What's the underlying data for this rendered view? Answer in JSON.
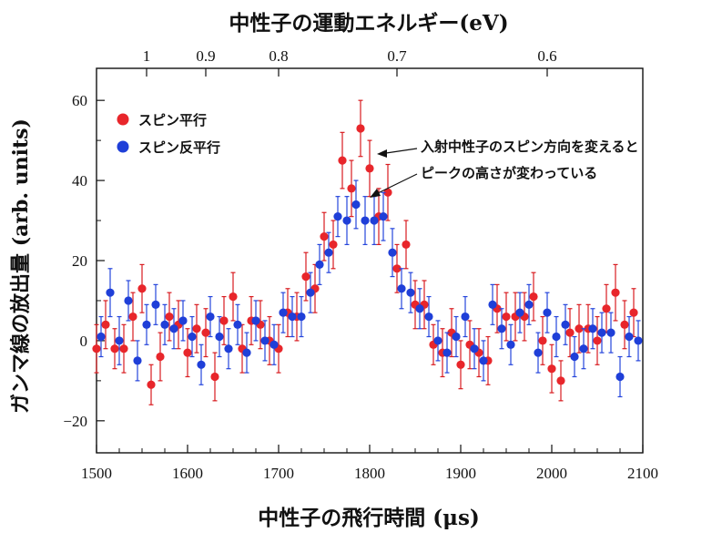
{
  "chart_data": {
    "type": "scatter",
    "title_top": "中性子の運動エネルギー(eV)",
    "xlabel": "中性子の飛行時間 (μs)",
    "ylabel": "ガンマ線の放出量 (arb. units)",
    "xlim": [
      1500,
      2100
    ],
    "ylim": [
      -28,
      68
    ],
    "x_ticks": [
      1500,
      1600,
      1700,
      1800,
      1900,
      2000,
      2100
    ],
    "y_ticks": [
      -20,
      0,
      20,
      40,
      60
    ],
    "top_axis": {
      "labels": [
        "1",
        "0.9",
        "0.8",
        "0.7",
        "0.6"
      ],
      "positions_us": [
        1555,
        1620,
        1700,
        1830,
        1995
      ]
    },
    "annotation": {
      "lines": [
        "入射中性子のスピン方向を変えると",
        "ピークの高さが変わっている"
      ],
      "points_to": [
        1800,
        31
      ]
    },
    "series": [
      {
        "name": "スピン平行",
        "color": "#e8262b",
        "errcolor": "#d81c20",
        "x": [
          1500,
          1510,
          1520,
          1530,
          1540,
          1550,
          1560,
          1570,
          1580,
          1590,
          1600,
          1610,
          1620,
          1630,
          1640,
          1650,
          1660,
          1670,
          1680,
          1690,
          1700,
          1710,
          1720,
          1730,
          1740,
          1750,
          1760,
          1770,
          1780,
          1790,
          1800,
          1810,
          1820,
          1830,
          1840,
          1850,
          1860,
          1870,
          1880,
          1890,
          1900,
          1910,
          1920,
          1930,
          1940,
          1950,
          1960,
          1970,
          1980,
          1990,
          2000,
          2010,
          2020,
          2030,
          2040,
          2050,
          2060,
          2070,
          2080,
          2090
        ],
        "y": [
          -2,
          4,
          -2,
          -2,
          6,
          13,
          -11,
          -4,
          6,
          4,
          -3,
          3,
          2,
          -9,
          5,
          11,
          -2,
          5,
          4,
          0,
          -2,
          7,
          6,
          16,
          13,
          26,
          24,
          45,
          38,
          53,
          43,
          31,
          37,
          18,
          24,
          9,
          9,
          -1,
          -3,
          2,
          -6,
          -1,
          -3,
          -5,
          8,
          6,
          6,
          6,
          11,
          0,
          -7,
          -10,
          2,
          3,
          3,
          0,
          8,
          12,
          4,
          7
        ],
        "err": [
          6,
          6,
          5,
          6,
          6,
          6,
          5,
          6,
          6,
          6,
          6,
          6,
          6,
          6,
          6,
          6,
          6,
          6,
          6,
          6,
          6,
          6,
          6,
          6,
          6,
          6,
          6,
          7,
          7,
          7,
          7,
          7,
          7,
          6,
          6,
          6,
          6,
          5,
          6,
          6,
          6,
          6,
          6,
          6,
          6,
          6,
          6,
          6,
          6,
          6,
          6,
          5,
          6,
          6,
          6,
          6,
          6,
          7,
          6,
          6
        ]
      },
      {
        "name": "スピン反平行",
        "color": "#1f3fd8",
        "errcolor": "#2545dc",
        "x": [
          1500,
          1510,
          1520,
          1530,
          1540,
          1550,
          1560,
          1570,
          1580,
          1590,
          1600,
          1610,
          1620,
          1630,
          1640,
          1650,
          1660,
          1670,
          1680,
          1690,
          1700,
          1710,
          1720,
          1730,
          1740,
          1750,
          1760,
          1770,
          1780,
          1790,
          1800,
          1810,
          1820,
          1830,
          1840,
          1850,
          1860,
          1870,
          1880,
          1890,
          1900,
          1910,
          1920,
          1930,
          1940,
          1950,
          1960,
          1970,
          1980,
          1990,
          2000,
          2010,
          2020,
          2030,
          2040,
          2050,
          2060,
          2070,
          2080,
          2090
        ],
        "y": [
          1,
          12,
          0,
          10,
          -5,
          4,
          9,
          4,
          3,
          5,
          1,
          -6,
          6,
          1,
          -2,
          4,
          -3,
          5,
          0,
          -1,
          7,
          6,
          6,
          12,
          19,
          22,
          31,
          30,
          34,
          30,
          30,
          31,
          22,
          13,
          12,
          8,
          6,
          0,
          -3,
          1,
          6,
          -2,
          -5,
          9,
          3,
          -1,
          7,
          9,
          -3,
          7,
          1,
          4,
          -4,
          -2,
          3,
          2,
          2,
          -9,
          1,
          0
        ],
        "err": [
          5,
          6,
          6,
          5,
          5,
          5,
          5,
          5,
          5,
          5,
          5,
          5,
          5,
          5,
          5,
          5,
          5,
          5,
          5,
          5,
          5,
          5,
          5,
          5,
          5,
          5,
          5,
          6,
          6,
          6,
          6,
          6,
          6,
          5,
          5,
          5,
          5,
          5,
          5,
          5,
          5,
          5,
          5,
          5,
          5,
          5,
          5,
          5,
          5,
          5,
          5,
          5,
          5,
          5,
          5,
          5,
          5,
          5,
          5,
          5
        ]
      }
    ]
  }
}
